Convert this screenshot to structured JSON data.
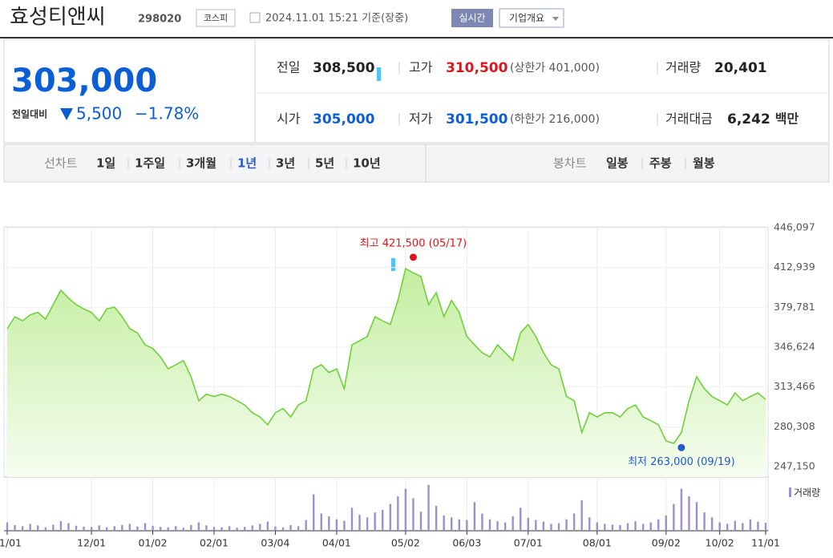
{
  "header": {
    "name": "효성티앤씨",
    "code": "298020",
    "market": "코스피",
    "timestamp": "2024.11.01 15:21 기준(장중)",
    "realtime_button": "실시간",
    "company_button": "기업개요"
  },
  "quote": {
    "price": "303,000",
    "change_label": "전일대비",
    "change": "5,500",
    "change_pct": "−1.78%",
    "color": "#0a5fd6"
  },
  "stats": [
    [
      {
        "label": "전일",
        "value": "308,500",
        "color": "#222"
      },
      {
        "label": "고가",
        "value": "310,500",
        "color": "#e0141b",
        "note": "(상한가 401,000)"
      },
      {
        "label": "거래량",
        "value": "20,401",
        "color": "#222"
      }
    ],
    [
      {
        "label": "시가",
        "value": "305,000",
        "color": "#0a5fd6"
      },
      {
        "label": "저가",
        "value": "301,500",
        "color": "#0a5fd6",
        "note": "(하한가 216,000)"
      },
      {
        "label": "거래대금",
        "value": "6,242",
        "color": "#222",
        "unit": "백만"
      }
    ]
  ],
  "tabs": {
    "line_label": "선차트",
    "line_items": [
      "1일",
      "1주일",
      "3개월",
      "1년",
      "3년",
      "5년",
      "10년"
    ],
    "selected": 3,
    "candle_label": "봉차트",
    "candle_items": [
      "일봉",
      "주봉",
      "월봉"
    ]
  },
  "chart_data": {
    "type": "line",
    "color": "#6fd03a",
    "grid": true,
    "values": [
      362000,
      372000,
      368500,
      373500,
      375500,
      370000,
      382000,
      394000,
      387500,
      382000,
      378500,
      375500,
      368500,
      378500,
      380000,
      372000,
      362000,
      358500,
      348500,
      345500,
      338500,
      328500,
      332000,
      335500,
      322000,
      302000,
      307500,
      305500,
      307500,
      305500,
      302000,
      298500,
      292000,
      288500,
      282000,
      292000,
      295500,
      288500,
      298500,
      302000,
      328500,
      332000,
      325500,
      328500,
      312000,
      348500,
      352000,
      355500,
      372000,
      368500,
      365500,
      385500,
      412000,
      408500,
      405500,
      382000,
      392000,
      372000,
      385500,
      375500,
      355500,
      348500,
      342000,
      338500,
      348500,
      342000,
      335500,
      358500,
      365500,
      355500,
      342000,
      332000,
      328500,
      305500,
      302000,
      275500,
      292000,
      288500,
      292000,
      292000,
      288500,
      295500,
      298500,
      288500,
      285500,
      282000,
      268500,
      266500,
      275500,
      302000,
      322000,
      312000,
      305500,
      302000,
      298500,
      308500,
      302000,
      305500,
      308500,
      303000
    ],
    "xlim": [
      0,
      99
    ],
    "xticks": [
      {
        "value": 0,
        "label": "11/01"
      },
      {
        "value": 11,
        "label": "12/01"
      },
      {
        "value": 19,
        "label": "01/02"
      },
      {
        "value": 27,
        "label": "02/01"
      },
      {
        "value": 35,
        "label": "03/04"
      },
      {
        "value": 43,
        "label": "04/01"
      },
      {
        "value": 52,
        "label": "05/02"
      },
      {
        "value": 60,
        "label": "06/03"
      },
      {
        "value": 68,
        "label": "07/01"
      },
      {
        "value": 77,
        "label": "08/01"
      },
      {
        "value": 86,
        "label": "09/02"
      },
      {
        "value": 93,
        "label": "10/02"
      },
      {
        "value": 99,
        "label": "11/01"
      }
    ],
    "ylim": [
      238471,
      446097
    ],
    "yticks": [
      {
        "value": 446097,
        "label": "446,097"
      },
      {
        "value": 412939,
        "label": "412,939"
      },
      {
        "value": 379781,
        "label": "379,781"
      },
      {
        "value": 346624,
        "label": "346,624"
      },
      {
        "value": 313466,
        "label": "313,466"
      },
      {
        "value": 280308,
        "label": "280,308"
      },
      {
        "value": 247150,
        "label": "247,150"
      }
    ],
    "annotations": [
      {
        "text": "최고 421,500 (05/17)",
        "value": 421500,
        "x": 53,
        "color": "#e0141b"
      },
      {
        "text": "최저 263,000 (09/19)",
        "value": 263000,
        "x": 88,
        "color": "#1f5cc7"
      }
    ],
    "volume": {
      "name": "거래량",
      "color": "#9d8fcc",
      "ylim": [
        0,
        130000
      ],
      "values": [
        22000,
        15000,
        12000,
        18000,
        14000,
        9000,
        16000,
        25000,
        20000,
        13000,
        11000,
        10000,
        14000,
        9000,
        12000,
        15000,
        18000,
        11000,
        20000,
        13000,
        10000,
        9000,
        12000,
        8000,
        15000,
        22000,
        14000,
        10000,
        9000,
        12000,
        8000,
        10000,
        14000,
        18000,
        24000,
        11000,
        9000,
        15000,
        12000,
        28000,
        95000,
        45000,
        38000,
        30000,
        26000,
        60000,
        42000,
        35000,
        48000,
        55000,
        70000,
        90000,
        110000,
        85000,
        50000,
        120000,
        65000,
        40000,
        35000,
        30000,
        28000,
        75000,
        45000,
        30000,
        25000,
        22000,
        38000,
        60000,
        34000,
        28000,
        24000,
        18000,
        20000,
        30000,
        45000,
        80000,
        35000,
        22000,
        18000,
        16000,
        15000,
        20000,
        25000,
        18000,
        22000,
        30000,
        40000,
        70000,
        110000,
        90000,
        75000,
        48000,
        35000,
        22000,
        18000,
        26000,
        20000,
        30000,
        24000,
        20401
      ]
    }
  }
}
